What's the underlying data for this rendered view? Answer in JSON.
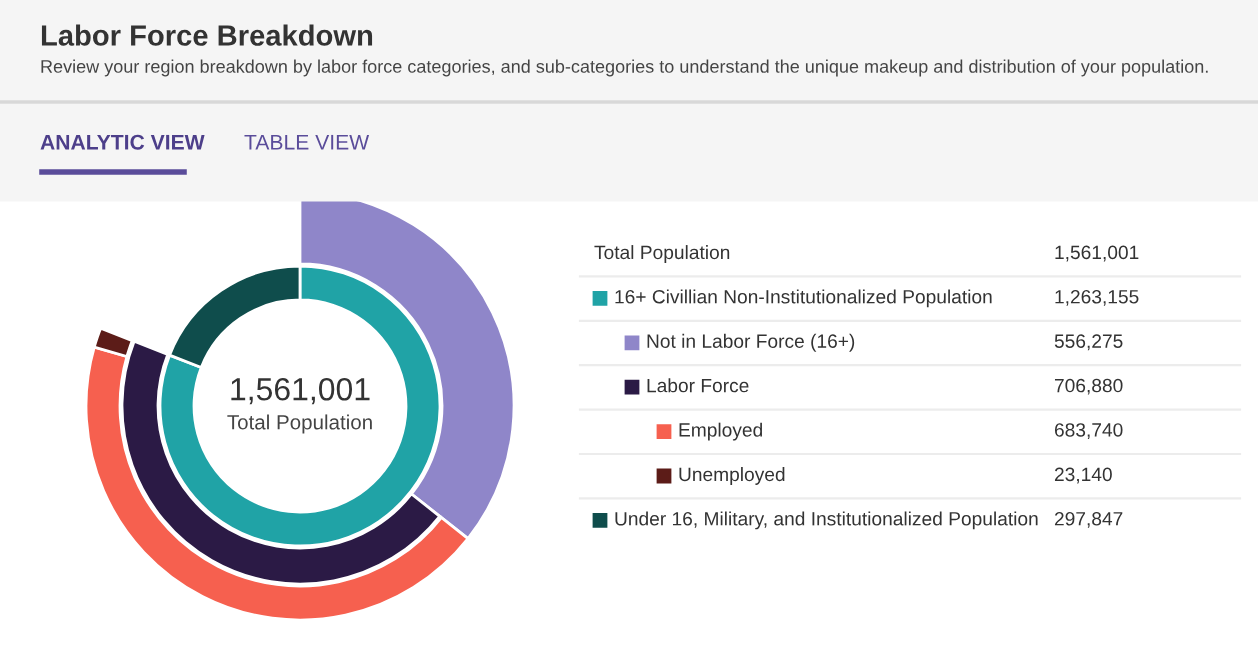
{
  "chart_data": {
    "type": "other",
    "title": "Labor Force Breakdown",
    "subtitle": "Review your region breakdown by labor force categories, and sub-categories to understand the unique makeup and distribution of your population.",
    "annotations": [
      "ANALYTIC VIEW",
      "TABLE VIEW",
      "Total Population"
    ],
    "totals": [
      "1,561,001"
    ],
    "categories": [
      "16+ Civillian Non-Institutionalized Population",
      "Not in Labor Force (16+)",
      "Labor Force",
      "Employed",
      "Unemployed",
      "Under 16, Military, and Institutionalized Population"
    ],
    "values": [
      1263155,
      556275,
      706880,
      683740,
      23140,
      297847
    ],
    "value_labels": [
      "1,263,155",
      "556,275",
      "706,880",
      "683,740",
      "23,140",
      "297,847"
    ],
    "colors": [
      "#20a3a6",
      "#8f86c9",
      "#2b1a45",
      "#f6604f",
      "#5c1c18",
      "#0f4d4c"
    ]
  }
}
